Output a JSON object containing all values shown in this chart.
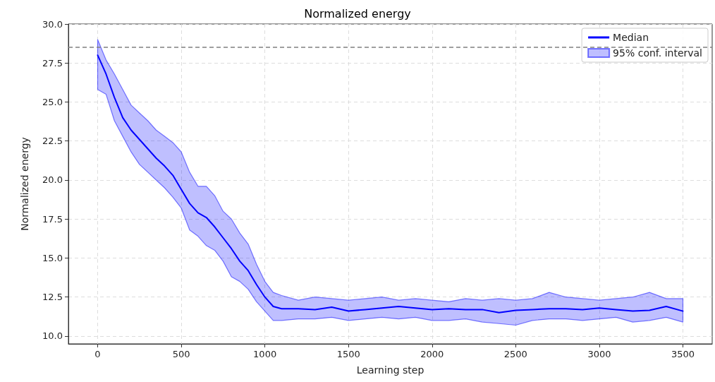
{
  "chart_data": {
    "type": "line",
    "title": "Normalized energy",
    "xlabel": "Learning step",
    "ylabel": "Normalized energy",
    "x": [
      0,
      50,
      100,
      150,
      200,
      250,
      300,
      350,
      400,
      450,
      500,
      550,
      600,
      650,
      700,
      750,
      800,
      850,
      900,
      950,
      1000,
      1050,
      1100,
      1200,
      1300,
      1400,
      1500,
      1600,
      1700,
      1800,
      1900,
      2000,
      2100,
      2200,
      2300,
      2400,
      2500,
      2600,
      2700,
      2800,
      2900,
      3000,
      3100,
      3200,
      3300,
      3400,
      3500
    ],
    "series": [
      {
        "name": "Median",
        "color": "#0000ff",
        "values": [
          28.0,
          26.8,
          25.3,
          24.0,
          23.2,
          22.6,
          22.0,
          21.4,
          20.9,
          20.3,
          19.4,
          18.5,
          17.9,
          17.6,
          17.0,
          16.3,
          15.6,
          14.8,
          14.2,
          13.3,
          12.5,
          11.9,
          11.75,
          11.75,
          11.7,
          11.85,
          11.6,
          11.7,
          11.8,
          11.9,
          11.8,
          11.7,
          11.75,
          11.7,
          11.7,
          11.5,
          11.65,
          11.7,
          11.75,
          11.75,
          11.7,
          11.8,
          11.7,
          11.6,
          11.65,
          11.9,
          11.6
        ],
        "upper": [
          29.0,
          27.7,
          26.8,
          25.8,
          24.8,
          24.3,
          23.8,
          23.2,
          22.8,
          22.4,
          21.8,
          20.5,
          19.6,
          19.6,
          19.0,
          18.0,
          17.5,
          16.6,
          15.9,
          14.6,
          13.5,
          12.8,
          12.6,
          12.3,
          12.5,
          12.4,
          12.3,
          12.4,
          12.5,
          12.3,
          12.4,
          12.3,
          12.2,
          12.4,
          12.3,
          12.4,
          12.3,
          12.4,
          12.8,
          12.5,
          12.4,
          12.3,
          12.4,
          12.5,
          12.8,
          12.4,
          12.4
        ],
        "lower": [
          25.8,
          25.5,
          23.8,
          22.8,
          21.8,
          21.0,
          20.5,
          20.0,
          19.5,
          18.9,
          18.2,
          16.8,
          16.4,
          15.8,
          15.5,
          14.8,
          13.8,
          13.5,
          13.0,
          12.2,
          11.6,
          11.0,
          11.0,
          11.1,
          11.1,
          11.2,
          11.0,
          11.1,
          11.2,
          11.1,
          11.2,
          11.0,
          11.0,
          11.1,
          10.9,
          10.8,
          10.7,
          11.0,
          11.1,
          11.1,
          11.0,
          11.1,
          11.2,
          10.9,
          11.0,
          11.2,
          10.9
        ]
      },
      {
        "name": "95% conf. interval",
        "type": "area",
        "color": "#0000ff",
        "values": [
          null,
          null,
          null,
          null,
          null,
          null,
          null,
          null,
          null,
          null,
          null,
          null,
          null,
          null,
          null,
          null,
          null,
          null,
          null,
          null,
          null,
          null,
          null,
          null,
          null,
          null,
          null,
          null,
          null,
          null,
          null,
          null,
          null,
          null,
          null,
          null,
          null,
          null,
          null,
          null,
          null,
          null,
          null,
          null,
          null,
          null,
          null
        ]
      }
    ],
    "xlim": [
      -175,
      3675
    ],
    "xticks": [
      0,
      500,
      1000,
      1500,
      2000,
      2500,
      3000,
      3500
    ],
    "ylim": [
      9.5,
      30
    ],
    "yticks": [
      {
        "value": 10,
        "label": "10.0"
      },
      {
        "value": 12.5,
        "label": "12.5"
      },
      {
        "value": 15,
        "label": "15.0"
      },
      {
        "value": 17.5,
        "label": "17.5"
      },
      {
        "value": 20,
        "label": "20.0"
      },
      {
        "value": 22.5,
        "label": "22.5"
      },
      {
        "value": 25,
        "label": "25.0"
      },
      {
        "value": 27.5,
        "label": "27.5"
      },
      {
        "value": 30,
        "label": "30.0"
      }
    ],
    "ref_lines": [
      {
        "axis": "y",
        "value": 28.5,
        "color": "#808080",
        "line_style": "dashed"
      }
    ],
    "grid": true,
    "legend": "top right",
    "marker": "none",
    "line_style": "solid"
  }
}
